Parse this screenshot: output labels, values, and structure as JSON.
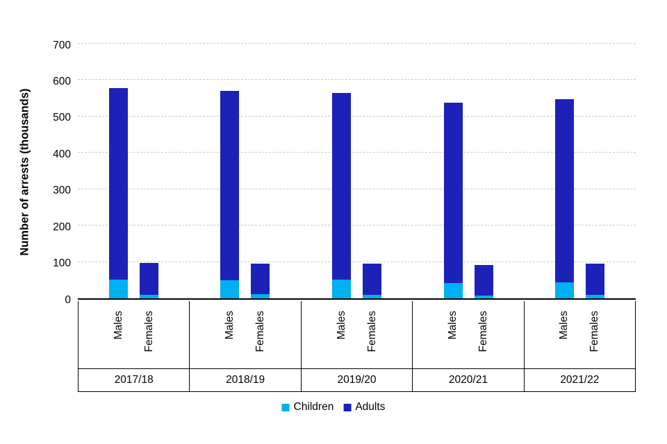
{
  "chart_data": {
    "type": "bar",
    "stacked": true,
    "title": "",
    "ylabel": "Number of arrests (thousands)",
    "xlabel": "",
    "ylim": [
      0,
      700
    ],
    "yticks": [
      0,
      100,
      200,
      300,
      400,
      500,
      600,
      700
    ],
    "grid": "horizontal-dashed",
    "legend_position": "bottom",
    "categories": [
      "2017/18",
      "2018/19",
      "2019/20",
      "2020/21",
      "2021/22"
    ],
    "subcategories": [
      "Males",
      "Females"
    ],
    "series": [
      {
        "name": "Children",
        "color": "#00b0f0",
        "values": {
          "Males": [
            52,
            49,
            51,
            42,
            44
          ],
          "Females": [
            10,
            12,
            10,
            7,
            9
          ]
        }
      },
      {
        "name": "Adults",
        "color": "#1c22b8",
        "values": {
          "Males": [
            526,
            521,
            514,
            495,
            503
          ],
          "Females": [
            88,
            84,
            86,
            84,
            87
          ]
        }
      }
    ],
    "legend": [
      {
        "label": "Children",
        "color": "#00b0f0"
      },
      {
        "label": "Adults",
        "color": "#1c22b8"
      }
    ]
  }
}
